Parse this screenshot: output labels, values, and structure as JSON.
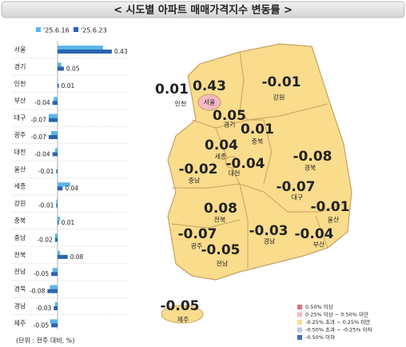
{
  "chart_data": {
    "type": "bar",
    "title": "< 시도별 아파트 매매가격지수 변동률 >",
    "categories": [
      "서울",
      "경기",
      "인천",
      "부산",
      "대구",
      "광주",
      "대전",
      "울산",
      "세종",
      "강원",
      "충북",
      "충남",
      "전북",
      "전남",
      "경북",
      "경남",
      "제주"
    ],
    "series": [
      {
        "name": "'25.6.16",
        "color": "#5ab4e8",
        "values": [
          0.36,
          0.03,
          0.0,
          -0.03,
          -0.07,
          -0.05,
          -0.02,
          0.0,
          0.1,
          -0.01,
          0.02,
          -0.02,
          0.02,
          -0.04,
          -0.06,
          -0.02,
          -0.06
        ]
      },
      {
        "name": "'25.6.23",
        "color": "#2a64b0",
        "values": [
          0.43,
          0.05,
          0.01,
          -0.04,
          -0.07,
          -0.07,
          -0.04,
          -0.01,
          0.04,
          -0.01,
          0.01,
          -0.02,
          0.08,
          -0.05,
          -0.08,
          -0.03,
          -0.05
        ]
      }
    ],
    "note": "(단위 : 전주 대비, %)",
    "map_legend": [
      {
        "label": "0.50% 이상",
        "color": "#e0707a"
      },
      {
        "label": "0.25% 이상 ~ 0.50% 미만",
        "color": "#f5b8c5"
      },
      {
        "label": "-0.25% 초과 ~ 0.25% 미만",
        "color": "#f9dc8c"
      },
      {
        "label": "-0.50% 초과 ~ -0.25% 이하",
        "color": "#b8c8e8"
      },
      {
        "label": "-0.50% 이하",
        "color": "#3a6ec0"
      }
    ]
  }
}
